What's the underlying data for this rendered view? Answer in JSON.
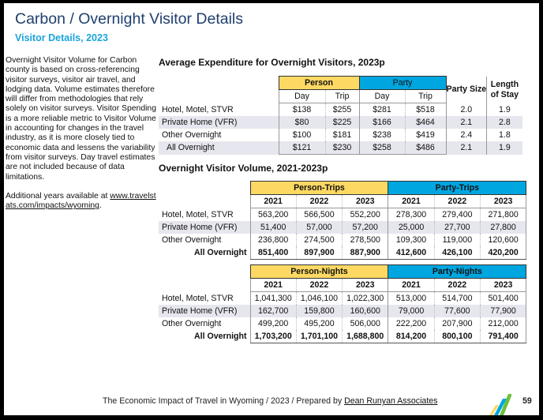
{
  "header": {
    "title": "Carbon / Overnight Visitor Details",
    "subtitle": "Visitor Details, 2023"
  },
  "sidebar": {
    "paragraph1": "Overnight Visitor Volume for Carbon county is based on cross-referencing visitor surveys, visitor air travel, and lodging data. Volume estimates therefore will differ from methodologies that rely solely on visitor surveys. Visitor Spending is a more reliable metric to Visitor Volume in accounting for changes in the travel industry, as it is more closely tied to economic data and lessens the variability from visitor surveys. Day travel estimates are not included because of data limitations.",
    "paragraph2_prefix": "Additional years available at ",
    "link": "www.travelstats.com/impacts/wyoming",
    "paragraph2_suffix": "."
  },
  "expenditure": {
    "title": "Average Expenditure for Overnight Visitors, 2023p",
    "group_person": "Person",
    "group_party": "Party",
    "day": "Day",
    "trip": "Trip",
    "party_size": "Party Size",
    "length_of_stay": "Length of Stay",
    "rows": [
      {
        "label": "Hotel, Motel, STVR",
        "values": [
          "$138",
          "$255",
          "$281",
          "$518",
          "2.0",
          "1.9"
        ]
      },
      {
        "label": "Private Home (VFR)",
        "values": [
          "$80",
          "$225",
          "$166",
          "$464",
          "2.1",
          "2.8"
        ]
      },
      {
        "label": "Other Overnight",
        "values": [
          "$100",
          "$181",
          "$238",
          "$419",
          "2.4",
          "1.8"
        ]
      },
      {
        "label": "All Overnight",
        "values": [
          "$121",
          "$230",
          "$258",
          "$486",
          "2.1",
          "1.9"
        ]
      }
    ]
  },
  "volume": {
    "title": "Overnight Visitor Volume, 2021-2023p",
    "years": [
      "2021",
      "2022",
      "2023"
    ],
    "trips": {
      "group_person": "Person-Trips",
      "group_party": "Party-Trips",
      "rows": [
        {
          "label": "Hotel, Motel, STVR",
          "values": [
            "563,200",
            "566,500",
            "552,200",
            "278,300",
            "279,400",
            "271,800"
          ]
        },
        {
          "label": "Private Home (VFR)",
          "values": [
            "51,400",
            "57,000",
            "57,200",
            "25,000",
            "27,700",
            "27,800"
          ]
        },
        {
          "label": "Other Overnight",
          "values": [
            "236,800",
            "274,500",
            "278,500",
            "109,300",
            "119,000",
            "120,600"
          ]
        },
        {
          "label": "All Overnight",
          "values": [
            "851,400",
            "897,900",
            "887,900",
            "412,600",
            "426,100",
            "420,200"
          ]
        }
      ]
    },
    "nights": {
      "group_person": "Person-Nights",
      "group_party": "Party-Nights",
      "rows": [
        {
          "label": "Hotel, Motel, STVR",
          "values": [
            "1,041,300",
            "1,046,100",
            "1,022,300",
            "513,000",
            "514,700",
            "501,400"
          ]
        },
        {
          "label": "Private Home (VFR)",
          "values": [
            "162,700",
            "159,800",
            "160,600",
            "79,000",
            "77,600",
            "77,900"
          ]
        },
        {
          "label": "Other Overnight",
          "values": [
            "499,200",
            "495,200",
            "506,000",
            "222,200",
            "207,900",
            "212,000"
          ]
        },
        {
          "label": "All Overnight",
          "values": [
            "1,703,200",
            "1,701,100",
            "1,688,800",
            "814,200",
            "800,100",
            "791,400"
          ]
        }
      ]
    }
  },
  "footer": {
    "text": "The Economic Impact of Travel in Wyoming / 2023 / Prepared by ",
    "link": "Dean Runyan Associates",
    "page": "59"
  },
  "colors": {
    "person": "#fdd963",
    "party": "#00a6e0",
    "title": "#1f3f6e",
    "subtitle": "#1ca3dc"
  }
}
